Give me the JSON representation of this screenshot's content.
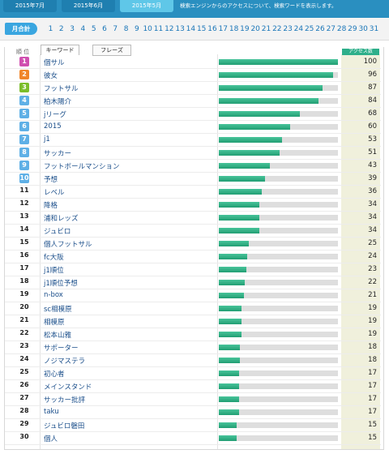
{
  "months": [
    {
      "label": "2015年7月"
    },
    {
      "label": "2015年6月"
    },
    {
      "label": "2015年5月"
    }
  ],
  "active_month": "2015年5月",
  "notice": "検索エンジンからのアクセスについて、検索ワードを表示します。",
  "day_pill": "月合計",
  "days": [
    "1",
    "2",
    "3",
    "4",
    "5",
    "6",
    "7",
    "8",
    "9",
    "10",
    "11",
    "12",
    "13",
    "14",
    "15",
    "16",
    "17",
    "18",
    "19",
    "20",
    "21",
    "22",
    "23",
    "24",
    "25",
    "26",
    "27",
    "28",
    "29",
    "30",
    "31"
  ],
  "header": {
    "rank_label": "順 位",
    "tabs": [
      {
        "label": "キーワード"
      },
      {
        "label": "フレーズ"
      }
    ],
    "access_label": "アクセス数"
  },
  "rows": [
    {
      "rank": "1",
      "keyword": "個サル",
      "count": 100
    },
    {
      "rank": "2",
      "keyword": "彼女",
      "count": 96
    },
    {
      "rank": "3",
      "keyword": "フットサル",
      "count": 87
    },
    {
      "rank": "4",
      "keyword": "柏木陽介",
      "count": 84
    },
    {
      "rank": "5",
      "keyword": "jリーグ",
      "count": 68
    },
    {
      "rank": "6",
      "keyword": "2015",
      "count": 60
    },
    {
      "rank": "7",
      "keyword": "j1",
      "count": 53
    },
    {
      "rank": "8",
      "keyword": "サッカー",
      "count": 51
    },
    {
      "rank": "9",
      "keyword": "フットボールマンション",
      "count": 43
    },
    {
      "rank": "10",
      "keyword": "予想",
      "count": 39
    },
    {
      "rank": "11",
      "keyword": "レベル",
      "count": 36
    },
    {
      "rank": "12",
      "keyword": "降格",
      "count": 34
    },
    {
      "rank": "13",
      "keyword": "浦和レッズ",
      "count": 34
    },
    {
      "rank": "14",
      "keyword": "ジュビロ",
      "count": 34
    },
    {
      "rank": "15",
      "keyword": "個人フットサル",
      "count": 25
    },
    {
      "rank": "16",
      "keyword": "fc大阪",
      "count": 24
    },
    {
      "rank": "17",
      "keyword": "j1順位",
      "count": 23
    },
    {
      "rank": "18",
      "keyword": "j1順位予想",
      "count": 22
    },
    {
      "rank": "19",
      "keyword": "n-box",
      "count": 21
    },
    {
      "rank": "20",
      "keyword": "sc相模原",
      "count": 19
    },
    {
      "rank": "21",
      "keyword": "相模原",
      "count": 19
    },
    {
      "rank": "22",
      "keyword": "松本山雅",
      "count": 19
    },
    {
      "rank": "23",
      "keyword": "サポーター",
      "count": 18
    },
    {
      "rank": "24",
      "keyword": "ノジマステラ",
      "count": 18
    },
    {
      "rank": "25",
      "keyword": "初心者",
      "count": 17
    },
    {
      "rank": "26",
      "keyword": "メインスタンド",
      "count": 17
    },
    {
      "rank": "27",
      "keyword": "サッカー批評",
      "count": 17
    },
    {
      "rank": "28",
      "keyword": "taku",
      "count": 17
    },
    {
      "rank": "29",
      "keyword": "ジュビロ磐田",
      "count": 15
    },
    {
      "rank": "30",
      "keyword": "個人",
      "count": 15
    }
  ],
  "colors": {
    "top_bar": "#2a8fc0",
    "bar_fill": "#2bac80",
    "bar_track": "#dedede",
    "medal_1": "#d04fb0",
    "medal_2": "#f0862a",
    "medal_3": "#7cbd2b",
    "medal_other": "#5fb0e6"
  }
}
